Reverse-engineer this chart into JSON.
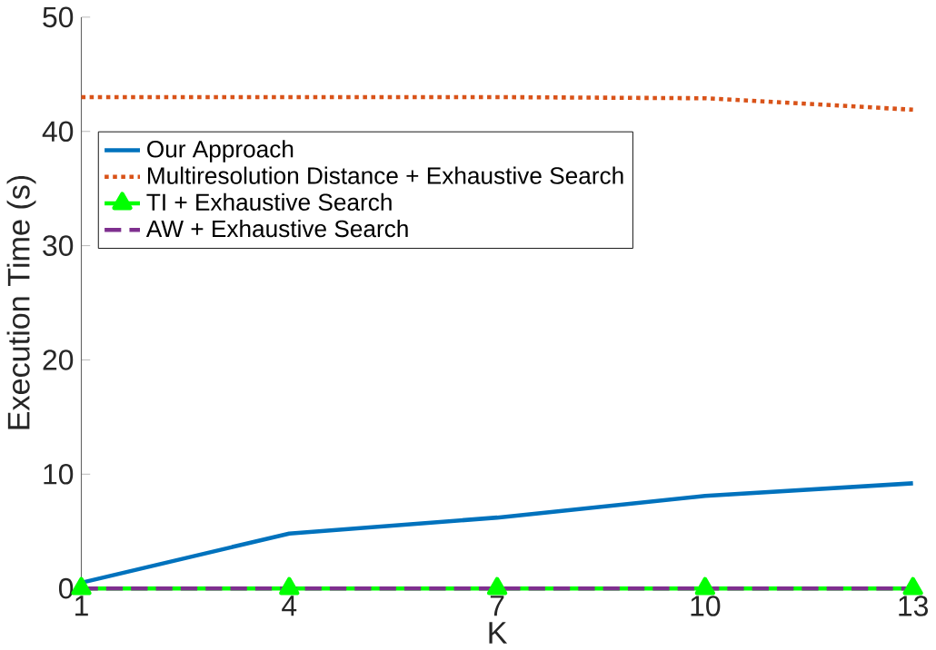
{
  "chart_data": {
    "type": "line",
    "xlabel": "K",
    "ylabel": "Execution Time (s)",
    "x": [
      1,
      4,
      7,
      10,
      13
    ],
    "xlim": [
      1,
      13
    ],
    "xticks": [
      1,
      4,
      7,
      10,
      13
    ],
    "ylim": [
      0,
      50
    ],
    "yticks": [
      0,
      10,
      20,
      30,
      40,
      50
    ],
    "legend": "top left",
    "grid": false,
    "series": [
      {
        "name": "Our Approach",
        "color": "#0072bd",
        "values": [
          0.5,
          4.8,
          6.2,
          8.1,
          9.2
        ],
        "line_style": "solid",
        "marker": "none"
      },
      {
        "name": "Multiresolution Distance + Exhaustive Search",
        "color": "#d95319",
        "values": [
          43,
          43,
          43,
          42.9,
          41.9
        ],
        "line_style": "dotted",
        "marker": "none"
      },
      {
        "name": "TI + Exhaustive Search",
        "color": "#00ff00",
        "values": [
          0,
          0,
          0,
          0,
          0
        ],
        "line_style": "solid",
        "marker": "triangle"
      },
      {
        "name": "AW + Exhaustive Search",
        "color": "#7e2f8e",
        "values": [
          0,
          0,
          0,
          0,
          0
        ],
        "line_style": "dashed",
        "marker": "none"
      }
    ]
  }
}
